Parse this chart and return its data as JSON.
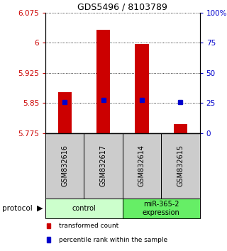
{
  "title": "GDS5496 / 8103789",
  "samples": [
    "GSM832616",
    "GSM832617",
    "GSM832614",
    "GSM832615"
  ],
  "bar_tops": [
    5.877,
    6.032,
    5.997,
    5.797
  ],
  "bar_bottom": 5.775,
  "blue_values": [
    5.852,
    5.857,
    5.857,
    5.852
  ],
  "ylim_left": [
    5.775,
    6.075
  ],
  "ylim_right": [
    0,
    100
  ],
  "yticks_left": [
    5.775,
    5.85,
    5.925,
    6.0,
    6.075
  ],
  "ytick_labels_left": [
    "5.775",
    "5.85",
    "5.925",
    "6",
    "6.075"
  ],
  "yticks_right": [
    0,
    25,
    50,
    75,
    100
  ],
  "ytick_labels_right": [
    "0",
    "25",
    "50",
    "75",
    "100%"
  ],
  "bar_color": "#cc0000",
  "blue_color": "#0000cc",
  "groups": [
    {
      "label": "control",
      "indices": [
        0,
        1
      ],
      "color": "#ccffcc"
    },
    {
      "label": "miR-365-2\nexpression",
      "indices": [
        2,
        3
      ],
      "color": "#66ee66"
    }
  ],
  "legend_items": [
    {
      "color": "#cc0000",
      "label": "transformed count"
    },
    {
      "color": "#0000cc",
      "label": "percentile rank within the sample"
    }
  ],
  "sample_box_color": "#cccccc",
  "protocol_label": "protocol",
  "figsize": [
    3.2,
    3.54
  ],
  "dpi": 100
}
